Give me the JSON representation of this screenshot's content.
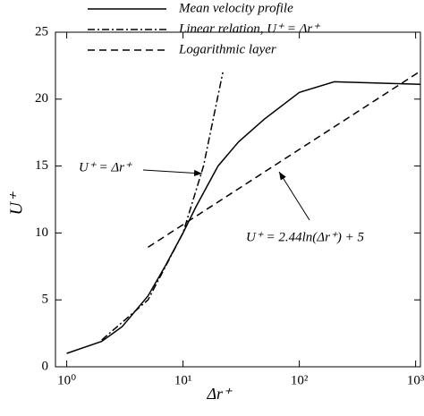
{
  "chart_data": {
    "type": "line",
    "log_x": true,
    "xlabel": "Δr⁺",
    "ylabel": "U⁺",
    "xlim": [
      0.8,
      1100
    ],
    "ylim": [
      0,
      25
    ],
    "xticks": [
      {
        "value": 1,
        "label": "10⁰"
      },
      {
        "value": 10,
        "label": "10¹"
      },
      {
        "value": 100,
        "label": "10²"
      },
      {
        "value": 1000,
        "label": "10³"
      }
    ],
    "yticks": [
      0,
      5,
      10,
      15,
      20,
      25
    ],
    "legend": "top",
    "series": [
      {
        "name": "Mean velocity profile",
        "color": "#000000",
        "dash": "solid",
        "x": [
          1,
          2,
          3,
          5,
          7,
          10,
          13,
          20,
          30,
          50,
          100,
          200,
          1100
        ],
        "values": [
          1,
          1.9,
          3,
          5.3,
          7.5,
          10,
          12,
          15,
          16.8,
          18.5,
          20.5,
          21.3,
          21.1
        ]
      },
      {
        "name": "Linear relation, U⁺ = Δr⁺",
        "color": "#000000",
        "dash": "dashdot",
        "x": [
          2,
          5,
          10,
          15,
          22
        ],
        "values": [
          2,
          5,
          10,
          15,
          22
        ]
      },
      {
        "name": "Logarithmic layer",
        "color": "#000000",
        "dash": "dashed",
        "x": [
          5,
          10,
          100,
          1000,
          1100
        ],
        "values": [
          8.93,
          10.62,
          16.24,
          21.86,
          22.09
        ]
      }
    ],
    "annotations": [
      "U⁺ = Δr⁺",
      "U⁺ = 2.44ln(Δr⁺) + 5"
    ]
  }
}
